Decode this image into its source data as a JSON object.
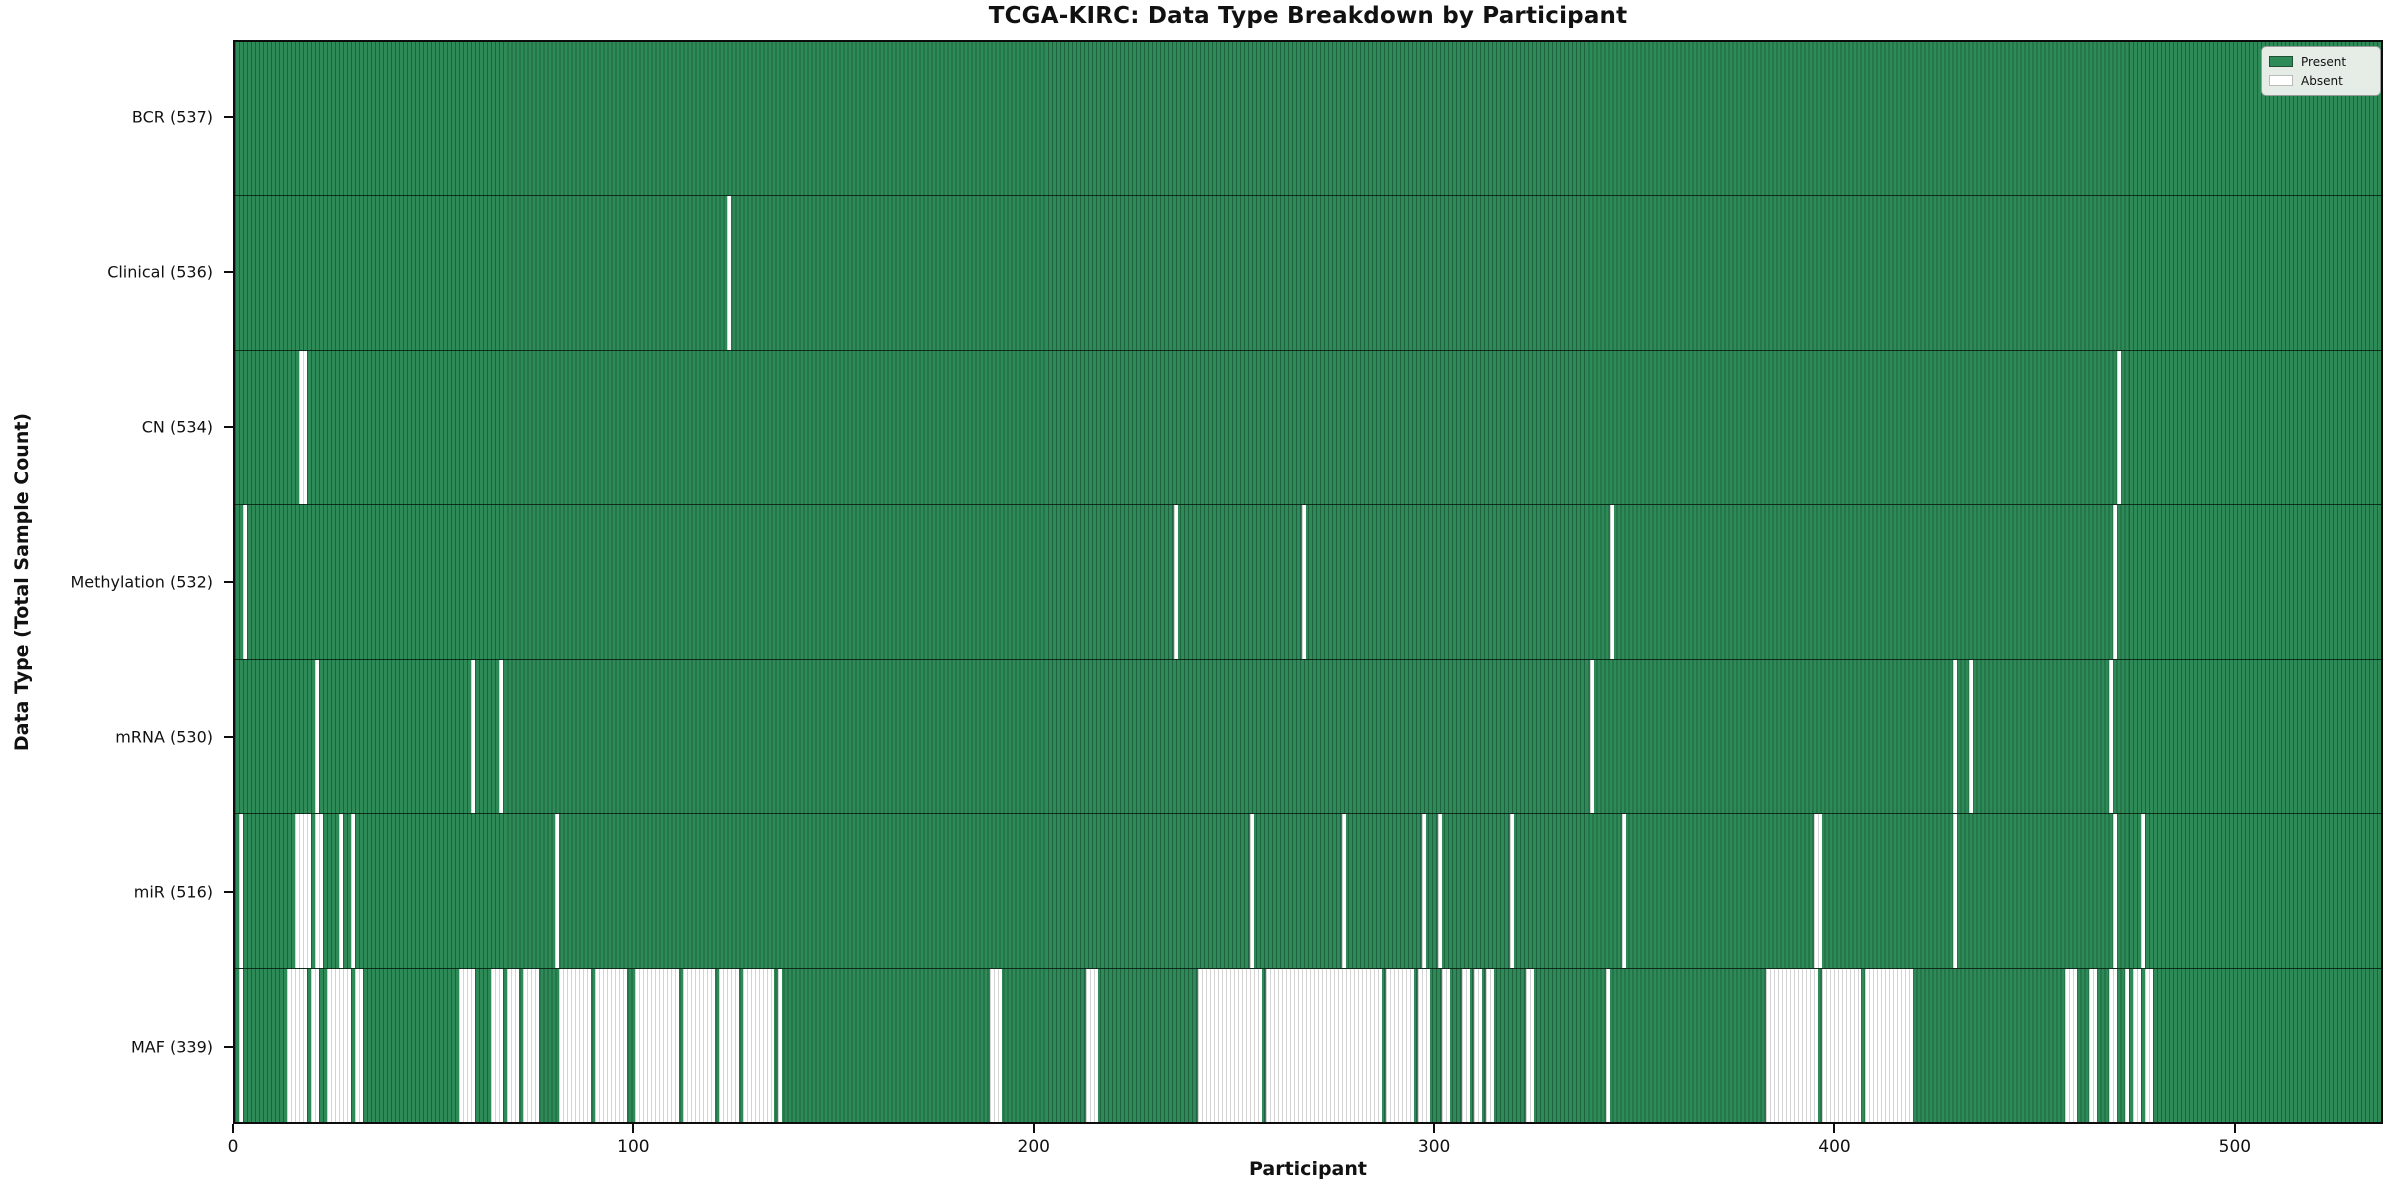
{
  "chart_data": {
    "type": "heatmap",
    "title": "TCGA-KIRC: Data Type Breakdown by Participant",
    "xlabel": "Participant",
    "ylabel": "Data Type (Total Sample Count)",
    "x_ticks": [
      0,
      100,
      200,
      300,
      400,
      500
    ],
    "xlim": [
      0,
      537
    ],
    "n_participants": 537,
    "grid": false,
    "legend": {
      "position": "upper right",
      "present_label": "Present",
      "absent_label": "Absent"
    },
    "colors": {
      "present": "#2e8b57",
      "present_edge": "#1f6240",
      "absent": "#ffffff",
      "absent_edge": "#d4d4d4",
      "axis": "#0d0d0d"
    },
    "rows": [
      {
        "key": "bcr",
        "label": "BCR (537)",
        "present_count": 537,
        "absent_count": 0,
        "absent_ranges": []
      },
      {
        "key": "clinical",
        "label": "Clinical (536)",
        "present_count": 536,
        "absent_count": 1,
        "absent_ranges": [
          [
            123,
            123
          ]
        ]
      },
      {
        "key": "cn",
        "label": "CN (534)",
        "present_count": 534,
        "absent_count": 3,
        "absent_ranges": [
          [
            16,
            17
          ],
          [
            471,
            471
          ]
        ]
      },
      {
        "key": "methylation",
        "label": "Methylation (532)",
        "present_count": 532,
        "absent_count": 5,
        "absent_ranges": [
          [
            2,
            2
          ],
          [
            235,
            235
          ],
          [
            267,
            267
          ],
          [
            344,
            344
          ],
          [
            470,
            470
          ]
        ]
      },
      {
        "key": "mrna",
        "label": "mRNA (530)",
        "present_count": 530,
        "absent_count": 7,
        "absent_ranges": [
          [
            20,
            20
          ],
          [
            59,
            59
          ],
          [
            66,
            66
          ],
          [
            339,
            339
          ],
          [
            430,
            430
          ],
          [
            434,
            434
          ],
          [
            469,
            469
          ]
        ]
      },
      {
        "key": "mir",
        "label": "miR (516)",
        "present_count": 516,
        "absent_count": 21,
        "absent_ranges": [
          [
            1,
            1
          ],
          [
            15,
            18
          ],
          [
            20,
            21
          ],
          [
            26,
            26
          ],
          [
            29,
            29
          ],
          [
            80,
            80
          ],
          [
            254,
            254
          ],
          [
            277,
            277
          ],
          [
            297,
            297
          ],
          [
            301,
            301
          ],
          [
            319,
            319
          ],
          [
            347,
            347
          ],
          [
            395,
            396
          ],
          [
            430,
            430
          ],
          [
            470,
            470
          ],
          [
            477,
            477
          ]
        ]
      },
      {
        "key": "maf",
        "label": "MAF (339)",
        "present_count": 339,
        "absent_count": 198,
        "absent_ranges": [
          [
            1,
            1
          ],
          [
            13,
            17
          ],
          [
            19,
            20
          ],
          [
            23,
            28
          ],
          [
            30,
            31
          ],
          [
            56,
            59
          ],
          [
            64,
            66
          ],
          [
            68,
            70
          ],
          [
            72,
            75
          ],
          [
            81,
            88
          ],
          [
            90,
            97
          ],
          [
            100,
            110
          ],
          [
            112,
            119
          ],
          [
            121,
            125
          ],
          [
            127,
            134
          ],
          [
            136,
            136
          ],
          [
            189,
            191
          ],
          [
            213,
            215
          ],
          [
            241,
            256
          ],
          [
            258,
            286
          ],
          [
            288,
            294
          ],
          [
            296,
            298
          ],
          [
            302,
            303
          ],
          [
            307,
            308
          ],
          [
            310,
            311
          ],
          [
            313,
            314
          ],
          [
            323,
            324
          ],
          [
            343,
            343
          ],
          [
            383,
            395
          ],
          [
            397,
            406
          ],
          [
            408,
            419
          ],
          [
            458,
            460
          ],
          [
            464,
            465
          ],
          [
            469,
            470
          ],
          [
            473,
            473
          ],
          [
            475,
            476
          ],
          [
            478,
            479
          ]
        ]
      }
    ]
  }
}
